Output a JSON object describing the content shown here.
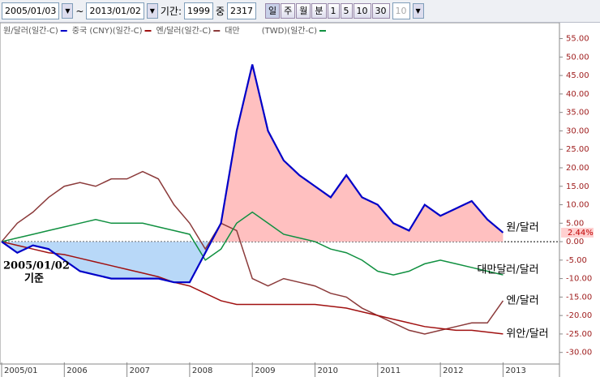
{
  "toolbar": {
    "start_date": "2005/01/03",
    "tilde": "~",
    "end_date": "2013/01/02",
    "period_label": "기간:",
    "period_value": "1999",
    "of_label": "중",
    "total_value": "2317",
    "buttons": [
      "일",
      "주",
      "월",
      "분",
      "1",
      "5",
      "10",
      "30"
    ],
    "count_value": "10"
  },
  "chart_data": {
    "type": "line",
    "legend": [
      "원/달러(일간-C)",
      "중국 (CNY)(일간-C)",
      "엔/달러(일간-C)",
      "대만",
      "(TWD)(일간-C)"
    ],
    "x": [
      2005,
      2005.25,
      2005.5,
      2005.75,
      2006,
      2006.25,
      2006.5,
      2006.75,
      2007,
      2007.25,
      2007.5,
      2007.75,
      2008,
      2008.25,
      2008.5,
      2008.75,
      2009,
      2009.25,
      2009.5,
      2009.75,
      2010,
      2010.25,
      2010.5,
      2010.75,
      2011,
      2011.25,
      2011.5,
      2011.75,
      2012,
      2012.25,
      2012.5,
      2012.75,
      2013
    ],
    "series": [
      {
        "name": "원/달러",
        "color": "#0000c8",
        "values": [
          0,
          -3,
          -1,
          -2,
          -5,
          -8,
          -9,
          -10,
          -10,
          -10,
          -10,
          -11,
          -11,
          -3,
          5,
          30,
          48,
          30,
          22,
          18,
          15,
          12,
          18,
          12,
          10,
          5,
          3,
          10,
          7,
          9,
          11,
          6,
          2.44
        ]
      },
      {
        "name": "위안/달러",
        "color": "#a01010",
        "values": [
          0,
          -1,
          -2,
          -3,
          -3.5,
          -4.5,
          -5.5,
          -6.5,
          -7.5,
          -8.5,
          -9.5,
          -11,
          -12,
          -14,
          -16,
          -17,
          -17,
          -17,
          -17,
          -17,
          -17,
          -17.5,
          -18,
          -19,
          -20,
          -21,
          -22,
          -23,
          -23.5,
          -24,
          -24,
          -24.5,
          -25
        ]
      },
      {
        "name": "엔/달러",
        "color": "#8b3a3a",
        "values": [
          0,
          5,
          8,
          12,
          15,
          16,
          15,
          17,
          17,
          19,
          17,
          10,
          5,
          -2,
          5,
          3,
          -10,
          -12,
          -10,
          -11,
          -12,
          -14,
          -15,
          -18,
          -20,
          -22,
          -24,
          -25,
          -24,
          -23,
          -22,
          -22,
          -16
        ]
      },
      {
        "name": "대만달러/달러",
        "color": "#109040",
        "values": [
          0,
          1,
          2,
          3,
          4,
          5,
          6,
          5,
          5,
          5,
          4,
          3,
          2,
          -5,
          -2,
          5,
          8,
          5,
          2,
          1,
          0,
          -2,
          -3,
          -5,
          -8,
          -9,
          -8,
          -6,
          -5,
          -6,
          -7,
          -8,
          -9
        ]
      }
    ],
    "base_label": [
      "2005/01/02",
      "기준"
    ],
    "last_value": {
      "value": 2.44,
      "label": "2.44%"
    },
    "xlim": [
      2005,
      2013.9
    ],
    "xticks": [
      {
        "value": 2005,
        "label": "2005/01"
      },
      2006,
      2007,
      2008,
      2009,
      2010,
      2011,
      2012,
      2013
    ],
    "ylim": [
      -32.7,
      58.2
    ],
    "yticks": [
      {
        "value": 55,
        "label": "55.00"
      },
      {
        "value": 50,
        "label": "50.00"
      },
      {
        "value": 45,
        "label": "45.00"
      },
      {
        "value": 40,
        "label": "40.00"
      },
      {
        "value": 35,
        "label": "35.00"
      },
      {
        "value": 30,
        "label": "30.00"
      },
      {
        "value": 25,
        "label": "25.00"
      },
      {
        "value": 20,
        "label": "20.00"
      },
      {
        "value": 15,
        "label": "15.00"
      },
      {
        "value": 10,
        "label": "10.00"
      },
      {
        "value": 5,
        "label": "5.00"
      },
      {
        "value": 0,
        "label": "0.00"
      },
      {
        "value": -5,
        "label": "-5.00"
      },
      {
        "value": -10,
        "label": "-10.00"
      },
      {
        "value": -15,
        "label": "-15.00"
      },
      {
        "value": -20,
        "label": "-20.00"
      },
      {
        "value": -25,
        "label": "-25.00"
      },
      {
        "value": -30,
        "label": "-30.00"
      }
    ]
  }
}
